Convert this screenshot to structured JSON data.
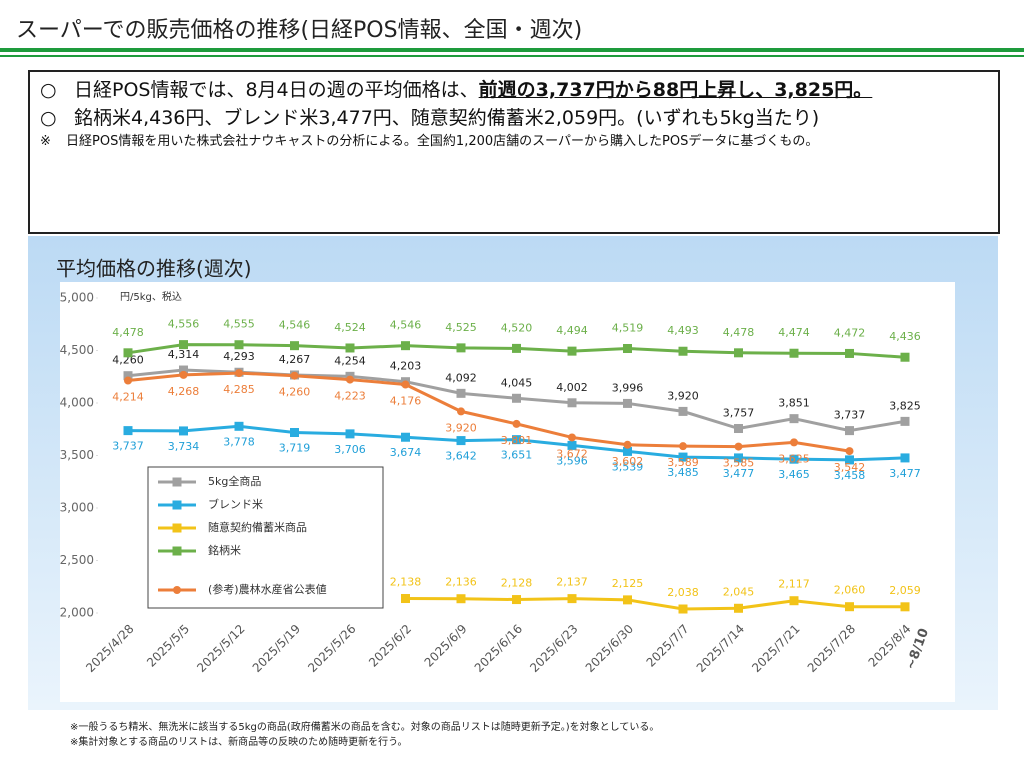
{
  "header": {
    "title": "スーパーでの販売価格の推移(日経POS情報、全国・週次)"
  },
  "summary": {
    "bullets": [
      {
        "mark": "○",
        "text": "日経POS情報では、8月4日の週の平均価格は、",
        "emphasis": "前週の3,737円から88円上昇し、3,825円。"
      },
      {
        "mark": "○",
        "text": "銘柄米4,436円、ブレンド米3,477円、随意契約備蓄米2,059円。(いずれも5kg当たり)"
      },
      {
        "mark": "※",
        "text": "日経POS情報を用いた株式会社ナウキャストの分析による。全国約1,200店舗のスーパーから購入したPOSデータに基づくもの。"
      }
    ]
  },
  "chart_data": {
    "type": "line",
    "title": "平均価格の推移(週次)",
    "y_label": "円/5kg、税込",
    "categories": [
      "2025/4/28",
      "2025/5/5",
      "2025/5/12",
      "2025/5/19",
      "2025/5/26",
      "2025/6/2",
      "2025/6/9",
      "2025/6/16",
      "2025/6/23",
      "2025/6/30",
      "2025/7/7",
      "2025/7/14",
      "2025/7/21",
      "2025/7/28",
      "2025/8/4"
    ],
    "last_category_note": "~8/10",
    "ylim": [
      2000,
      5000
    ],
    "yticks": [
      {
        "value": 2000,
        "label": "2,000"
      },
      {
        "value": 2500,
        "label": "2,500"
      },
      {
        "value": 3000,
        "label": "3,000"
      },
      {
        "value": 3500,
        "label": "3,500"
      },
      {
        "value": 4000,
        "label": "4,000"
      },
      {
        "value": 4500,
        "label": "4,500"
      },
      {
        "value": 5000,
        "label": "5,000"
      }
    ],
    "grid": false,
    "series": [
      {
        "name": "5kg全商品",
        "color": "#a0a0a0",
        "marker": "square",
        "values": [
          4260,
          4314,
          4293,
          4267,
          4254,
          4203,
          4092,
          4045,
          4002,
          3996,
          3920,
          3757,
          3851,
          3737,
          3825
        ],
        "value_labels": [
          "4,260",
          "4,314",
          "4,293",
          "4,267",
          "4,254",
          "4,203",
          "4,092",
          "4,045",
          "4,002",
          "3,996",
          "3,920",
          "3,757",
          "3,851",
          "3,737",
          "3,825"
        ]
      },
      {
        "name": "ブレンド米",
        "color": "#29ace0",
        "marker": "square",
        "values": [
          3737,
          3734,
          3778,
          3719,
          3706,
          3674,
          3642,
          3651,
          3596,
          3539,
          3485,
          3477,
          3465,
          3458,
          3477
        ],
        "value_labels": [
          "3,737",
          "3,734",
          "3,778",
          "3,719",
          "3,706",
          "3,674",
          "3,642",
          "3,651",
          "3,596",
          "3,539",
          "3,485",
          "3,477",
          "3,465",
          "3,458",
          "3,477"
        ]
      },
      {
        "name": "随意契約備蓄米商品",
        "color": "#f2c318",
        "marker": "square",
        "values": [
          null,
          null,
          null,
          null,
          null,
          2138,
          2136,
          2128,
          2137,
          2125,
          2038,
          2045,
          2117,
          2060,
          2059
        ],
        "value_labels": [
          null,
          null,
          null,
          null,
          null,
          "2,138",
          "2,136",
          "2,128",
          "2,137",
          "2,125",
          "2,038",
          "2,045",
          "2,117",
          "2,060",
          "2,059"
        ]
      },
      {
        "name": "銘柄米",
        "color": "#6cb04a",
        "marker": "square",
        "values": [
          4478,
          4556,
          4555,
          4546,
          4524,
          4546,
          4525,
          4520,
          4494,
          4519,
          4493,
          4478,
          4474,
          4472,
          4436
        ],
        "value_labels": [
          "4,478",
          "4,556",
          "4,555",
          "4,546",
          "4,524",
          "4,546",
          "4,525",
          "4,520",
          "4,494",
          "4,519",
          "4,493",
          "4,478",
          "4,474",
          "4,472",
          "4,436"
        ]
      },
      {
        "name": "(参考)農林水産省公表値",
        "color": "#ec7e3a",
        "marker": "circle",
        "values": [
          4214,
          4268,
          4285,
          4260,
          4223,
          4176,
          3920,
          3801,
          3672,
          3602,
          3589,
          3585,
          3625,
          3542,
          null
        ],
        "value_labels": [
          "4,214",
          "4,268",
          "4,285",
          "4,260",
          "4,223",
          "4,176",
          "3,920",
          "3,801",
          "3,672",
          "3,602",
          "3,589",
          "3,585",
          "3,625",
          "3,542",
          null
        ]
      }
    ]
  },
  "footnotes": [
    "※一般うるち精米、無洗米に該当する5kgの商品(政府備蓄米の商品を含む。対象の商品リストは随時更新予定。)を対象としている。",
    "※集計対象とする商品のリストは、新商品等の反映のため随時更新を行う。"
  ]
}
